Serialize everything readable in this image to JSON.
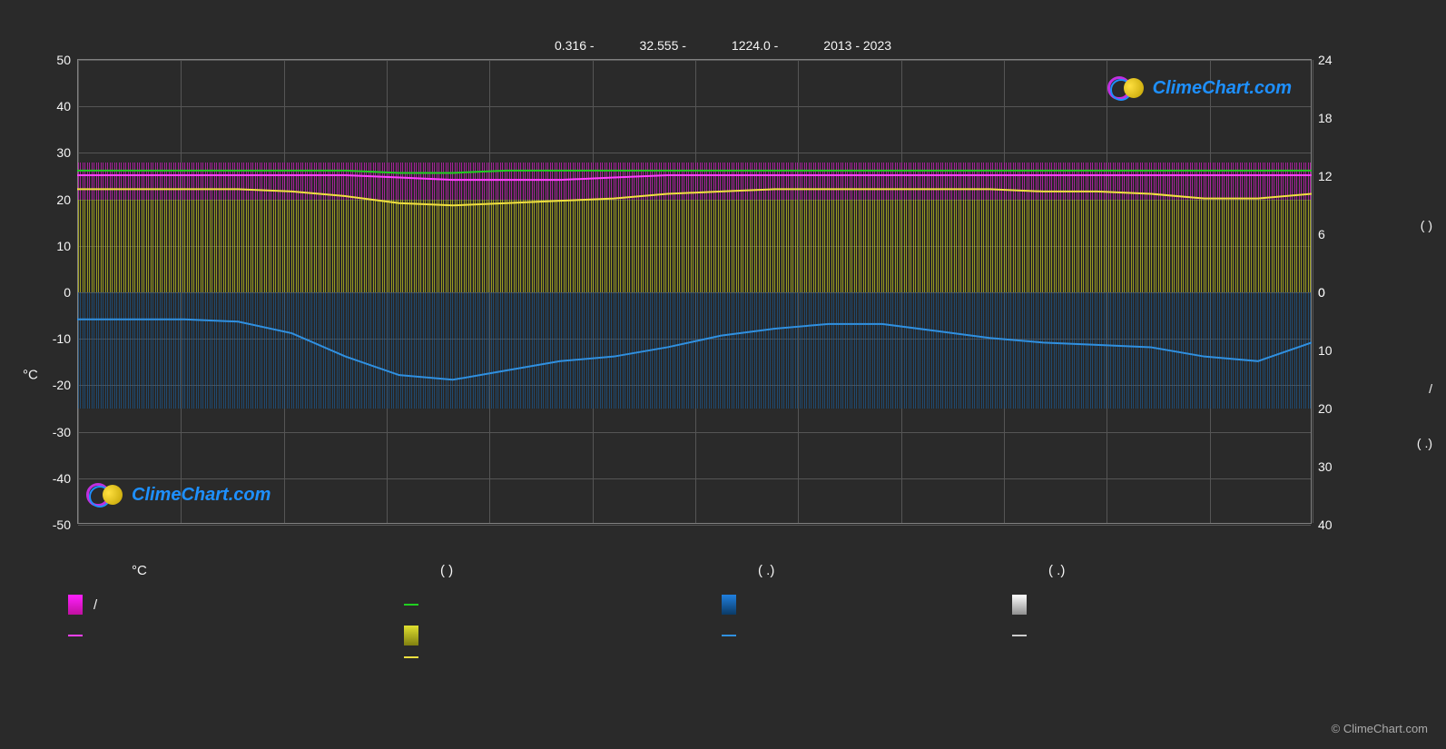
{
  "header": {
    "lat": "0.316 -",
    "lon": "32.555 -",
    "elev": "1224.0 -",
    "years": "2013 - 2023"
  },
  "chart": {
    "type": "combo-climate",
    "background": "#2a2a2a",
    "grid_color": "#555555",
    "border_color": "#808080",
    "y_left": {
      "title": "°C",
      "min": -50,
      "max": 50,
      "ticks": [
        -50,
        -40,
        -30,
        -20,
        -10,
        0,
        10,
        20,
        30,
        40,
        50
      ]
    },
    "y_right_upper": {
      "min": 0,
      "max": 24,
      "ticks": [
        0,
        6,
        12,
        18,
        24
      ],
      "unit_label": "(    )"
    },
    "y_right_lower": {
      "min": 0,
      "max": 40,
      "ticks": [
        0,
        10,
        20,
        30,
        40
      ],
      "unit_label_1": "/",
      "unit_label_2": "(  .)"
    },
    "months_ticks": [
      "",
      "",
      "",
      "",
      "",
      "",
      "",
      "",
      "",
      "",
      "",
      ""
    ],
    "bands": {
      "magenta": {
        "color": "#d020c0",
        "top_c": 28,
        "bottom_c": 20,
        "opacity": 0.75
      },
      "yellow": {
        "color": "#c0c020",
        "top_c": 20,
        "bottom_c": 0,
        "opacity": 0.75
      },
      "blue": {
        "color": "#1a5f9e",
        "top_c": 0,
        "bottom_c": -25,
        "opacity": 0.6
      }
    },
    "lines": {
      "magenta_avg": {
        "color": "#ff40ff",
        "width": 2,
        "points": [
          25,
          25,
          25,
          25,
          25,
          25,
          24.5,
          24,
          24,
          24,
          24.5,
          25,
          25,
          25,
          25,
          25,
          25,
          25,
          25,
          25,
          25,
          25,
          25,
          25
        ]
      },
      "green_max": {
        "color": "#20d020",
        "width": 2,
        "points": [
          26,
          26,
          26,
          26,
          26,
          26,
          25.5,
          25.5,
          26,
          26,
          26,
          26,
          26,
          26,
          26,
          26,
          26,
          26,
          26,
          26,
          26,
          26,
          26,
          26
        ]
      },
      "yellow_sun": {
        "color": "#f0e040",
        "width": 2,
        "points": [
          22,
          22,
          22,
          22,
          21.5,
          20.5,
          19,
          18.5,
          19,
          19.5,
          20,
          21,
          21.5,
          22,
          22,
          22,
          22,
          22,
          21.5,
          21.5,
          21,
          20,
          20,
          21
        ]
      },
      "blue_rain": {
        "color": "#3090e0",
        "width": 2,
        "points": [
          -6,
          -6,
          -6,
          -6.5,
          -9,
          -14,
          -18,
          -19,
          -17,
          -15,
          -14,
          -12,
          -9.5,
          -8,
          -7,
          -7,
          -8.5,
          -10,
          -11,
          -11.5,
          -12,
          -14,
          -15,
          -11
        ]
      }
    }
  },
  "legend": {
    "headers": [
      "°C",
      "(          )",
      "(   .)",
      "(   .)"
    ],
    "row1": [
      {
        "type": "swatch",
        "color_top": "#ff20ff",
        "color_bot": "#c010a0",
        "label": "/"
      },
      {
        "type": "line",
        "color": "#20d020",
        "label": ""
      },
      {
        "type": "swatch",
        "color_top": "#2080e0",
        "color_bot": "#0b3a66",
        "label": ""
      },
      {
        "type": "swatch",
        "color_top": "#ffffff",
        "color_bot": "#909090",
        "label": ""
      }
    ],
    "row2": [
      {
        "type": "line",
        "color": "#ff40ff",
        "label": ""
      },
      {
        "type": "swatch",
        "color_top": "#e0e030",
        "color_bot": "#808010",
        "label": ""
      },
      {
        "type": "line",
        "color": "#3090e0",
        "label": ""
      },
      {
        "type": "line",
        "color": "#cccccc",
        "label": ""
      }
    ],
    "row3": [
      {
        "type": "none",
        "label": ""
      },
      {
        "type": "line",
        "color": "#f0e040",
        "label": ""
      },
      {
        "type": "none",
        "label": ""
      },
      {
        "type": "none",
        "label": ""
      }
    ]
  },
  "watermark_text": "ClimeChart.com",
  "copyright": "© ClimeChart.com"
}
